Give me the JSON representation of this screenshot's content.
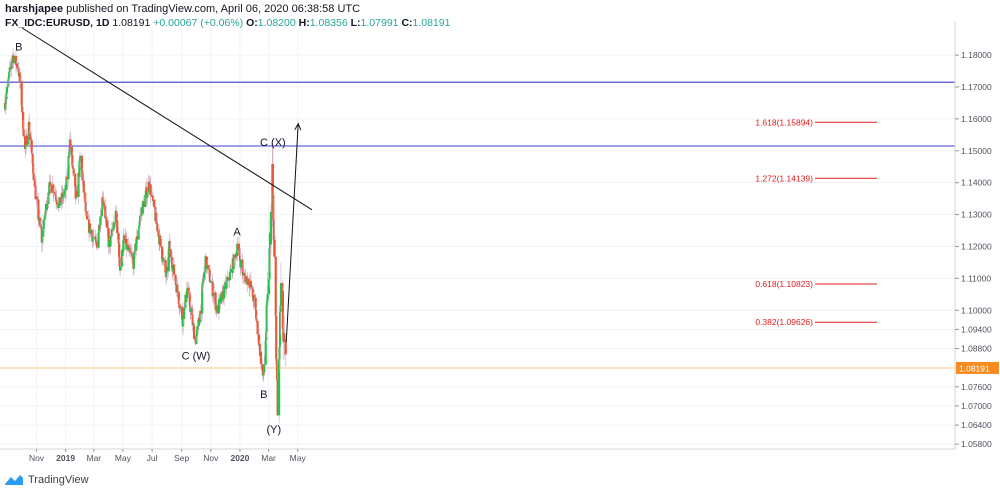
{
  "header": {
    "author": "harshjapee",
    "published_text": "published on TradingView.com, April 06, 2020 06:38:58 UTC",
    "symbol": "FX_IDC:EURUSD, 1D",
    "last": "1.08191",
    "change": "+0.00067 (+0.06%)",
    "o_label": "O:",
    "o_value": "1.08200",
    "h_label": "H:",
    "h_value": "1.08356",
    "l_label": "L:",
    "l_value": "1.07991",
    "c_label": "C:",
    "c_value": "1.08191"
  },
  "footer": {
    "brand": "TradingView",
    "logo_icon": "tradingview-logo-icon"
  },
  "colors": {
    "up": "#26c24b",
    "down": "#e8593a",
    "hline": "#3f3fd6",
    "trend": "#111111",
    "fib": "#e01b1b",
    "price_line": "#f7c48a",
    "price_tag": "#f68c1f",
    "grid": "#f0f3fa"
  },
  "chart_data": {
    "type": "candlestick",
    "ylim": [
      1.0565,
      1.1885
    ],
    "y_ticks": [
      "1.18000",
      "1.17000",
      "1.16000",
      "1.15000",
      "1.14000",
      "1.13000",
      "1.12000",
      "1.11000",
      "1.10000",
      "1.09400",
      "1.08800",
      "1.07600",
      "1.07000",
      "1.06400",
      "1.05800"
    ],
    "x_ticks": [
      "Nov",
      "2019",
      "Mar",
      "May",
      "Jul",
      "Sep",
      "Nov",
      "2020",
      "Mar",
      "May"
    ],
    "current_price": "1.08191",
    "horizontal_lines": [
      1.1715,
      1.1515
    ],
    "trendline": {
      "from": [
        "2018-10-02",
        1.1885
      ],
      "to": [
        "2020-05-31",
        1.1315
      ]
    },
    "projection_arrow": {
      "from": [
        "2020-04-07",
        1.09
      ],
      "to": [
        "2020-05-02",
        1.1585
      ]
    },
    "fib_levels": [
      {
        "label": "1.618(1.15894)",
        "value": 1.15894
      },
      {
        "label": "1.272(1.14139)",
        "value": 1.14139
      },
      {
        "label": "0.618(1.10823)",
        "value": 1.10823
      },
      {
        "label": "0.382(1.09626)",
        "value": 1.09626
      }
    ],
    "wave_labels": [
      {
        "text": "B",
        "date": "2018-09-25",
        "value": 1.1815
      },
      {
        "text": "A",
        "date": "2019-12-26",
        "value": 1.1235
      },
      {
        "text": "C (W)",
        "date": "2019-10-01",
        "value": 1.0845
      },
      {
        "text": "B",
        "date": "2020-02-20",
        "value": 1.0725
      },
      {
        "text": "C (X)",
        "date": "2020-03-10",
        "value": 1.1515
      },
      {
        "text": "(Y)",
        "date": "2020-03-12",
        "value": 1.0615
      }
    ],
    "path": [
      [
        "2018-08-27",
        1.165
      ],
      [
        "2018-09-12",
        1.18
      ],
      [
        "2018-09-24",
        1.176
      ],
      [
        "2018-09-30",
        1.167
      ],
      [
        "2018-10-08",
        1.15
      ],
      [
        "2018-10-16",
        1.158
      ],
      [
        "2018-10-31",
        1.135
      ],
      [
        "2018-11-12",
        1.122
      ],
      [
        "2018-11-26",
        1.138
      ],
      [
        "2018-12-05",
        1.139
      ],
      [
        "2018-12-18",
        1.133
      ],
      [
        "2019-01-02",
        1.138
      ],
      [
        "2019-01-10",
        1.153
      ],
      [
        "2019-01-23",
        1.134
      ],
      [
        "2019-02-01",
        1.148
      ],
      [
        "2019-02-14",
        1.128
      ],
      [
        "2019-03-07",
        1.12
      ],
      [
        "2019-03-20",
        1.136
      ],
      [
        "2019-04-02",
        1.12
      ],
      [
        "2019-04-17",
        1.13
      ],
      [
        "2019-04-25",
        1.113
      ],
      [
        "2019-05-03",
        1.122
      ],
      [
        "2019-05-23",
        1.115
      ],
      [
        "2019-06-07",
        1.13
      ],
      [
        "2019-06-25",
        1.14
      ],
      [
        "2019-07-12",
        1.126
      ],
      [
        "2019-07-31",
        1.11
      ],
      [
        "2019-08-06",
        1.12
      ],
      [
        "2019-08-23",
        1.106
      ],
      [
        "2019-09-03",
        1.097
      ],
      [
        "2019-09-13",
        1.107
      ],
      [
        "2019-09-30",
        1.09
      ],
      [
        "2019-10-09",
        1.098
      ],
      [
        "2019-10-21",
        1.116
      ],
      [
        "2019-11-04",
        1.107
      ],
      [
        "2019-11-14",
        1.1
      ],
      [
        "2019-12-02",
        1.107
      ],
      [
        "2019-12-13",
        1.112
      ],
      [
        "2019-12-27",
        1.12
      ],
      [
        "2020-01-08",
        1.111
      ],
      [
        "2020-01-21",
        1.109
      ],
      [
        "2020-02-01",
        1.102
      ],
      [
        "2020-02-19",
        1.078
      ],
      [
        "2020-02-29",
        1.104
      ],
      [
        "2020-03-09",
        1.1425
      ],
      [
        "2020-03-12",
        1.12
      ],
      [
        "2020-03-17",
        1.09
      ],
      [
        "2020-03-20",
        1.066
      ],
      [
        "2020-03-26",
        1.102
      ],
      [
        "2020-03-28",
        1.112
      ],
      [
        "2020-04-01",
        1.09
      ],
      [
        "2020-04-06",
        1.082
      ]
    ]
  }
}
